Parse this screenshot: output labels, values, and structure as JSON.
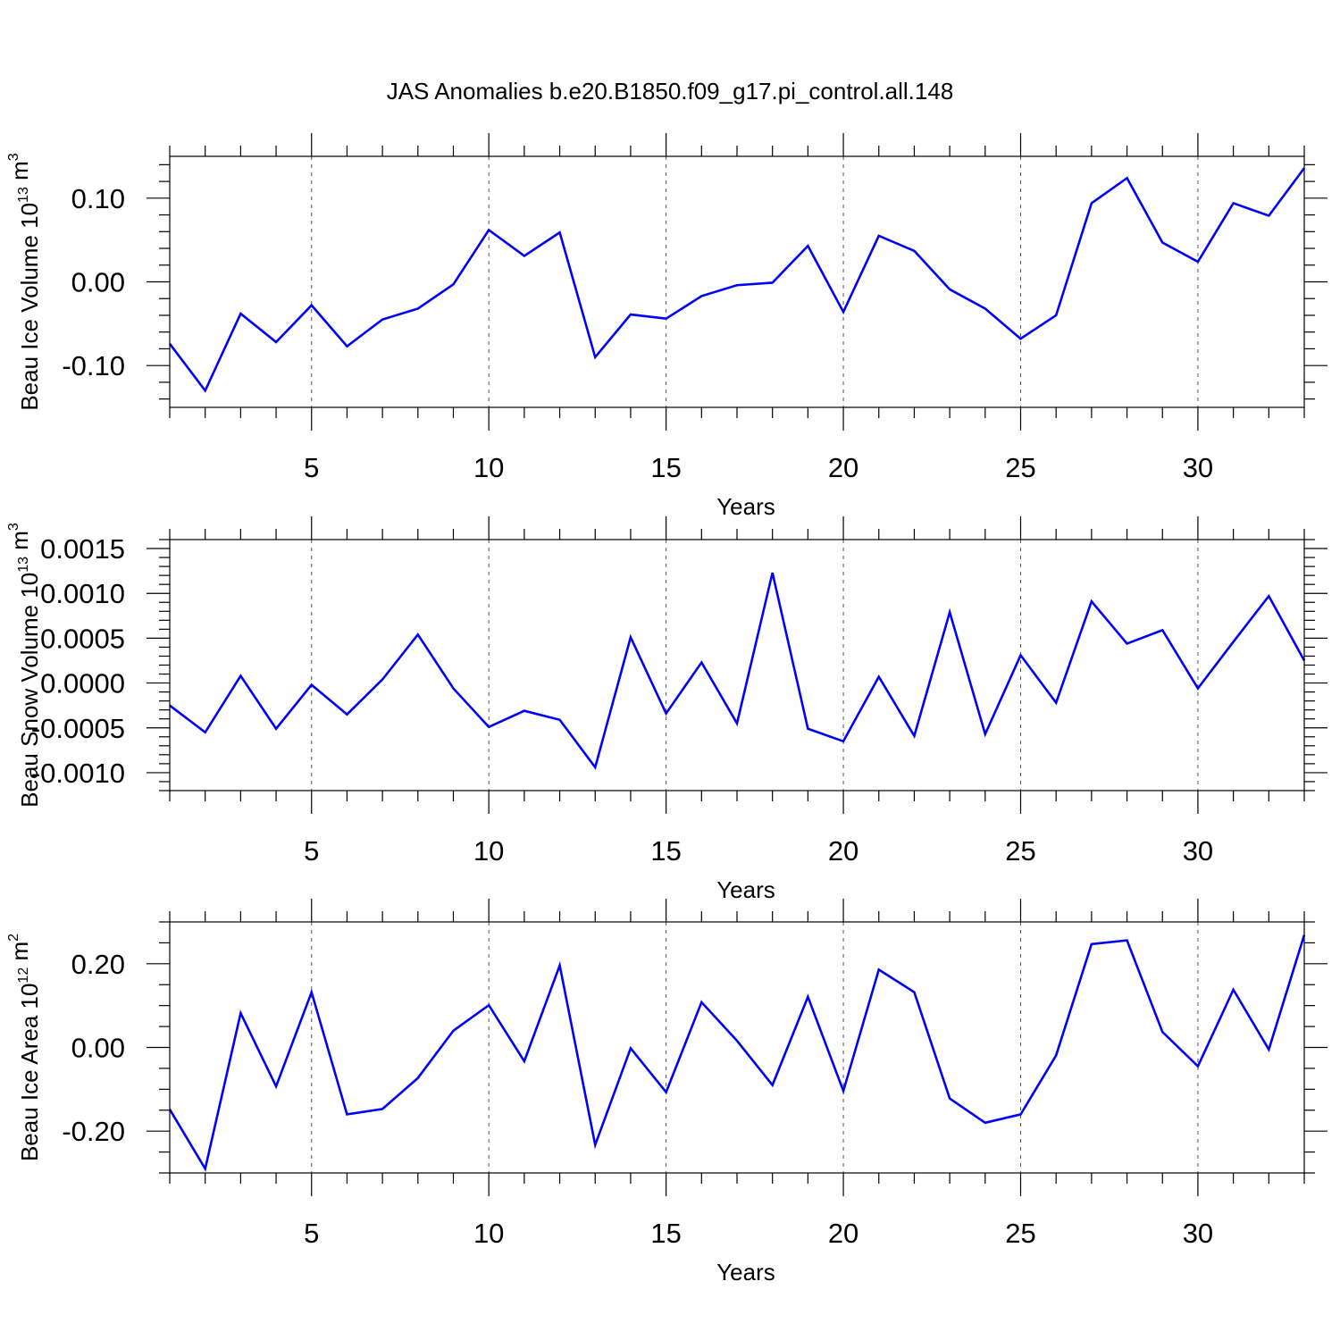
{
  "figure": {
    "title": "JAS Anomalies b.e20.B1850.f09_g17.pi_control.all.148"
  },
  "style": {
    "line_color": "#0000ff",
    "axis_color": "#000000",
    "grid_color": "#555555",
    "background": "#ffffff"
  },
  "chart_data": [
    {
      "type": "line",
      "ylabel_main": "Beau Ice Volume 10",
      "ylabel_exp": "13",
      "ylabel_unit": " m",
      "ylabel_unit_exp": "3",
      "xlabel": "Years",
      "xlim": [
        1,
        33
      ],
      "ylim": [
        -0.15,
        0.15
      ],
      "xticks": [
        5,
        10,
        15,
        20,
        25,
        30
      ],
      "xtick_labels": [
        "5",
        "10",
        "15",
        "20",
        "25",
        "30"
      ],
      "yticks": [
        -0.1,
        0.0,
        0.1
      ],
      "ytick_labels": [
        "-0.10",
        "0.00",
        "0.10"
      ],
      "y_minor_step": 0.02,
      "grid_x": true,
      "series": [
        {
          "x": [
            1,
            2,
            3,
            4,
            5,
            6,
            7,
            8,
            9,
            10,
            11,
            12,
            13,
            14,
            15,
            16,
            17,
            18,
            19,
            20,
            21,
            22,
            23,
            24,
            25,
            26,
            27,
            28,
            29,
            30,
            31,
            32,
            33
          ],
          "values": [
            -0.074,
            -0.13,
            -0.038,
            -0.072,
            -0.028,
            -0.077,
            -0.045,
            -0.032,
            -0.003,
            0.062,
            0.031,
            0.059,
            -0.09,
            -0.039,
            -0.044,
            -0.017,
            -0.004,
            -0.001,
            0.043,
            -0.036,
            0.055,
            0.037,
            -0.009,
            -0.032,
            -0.068,
            -0.04,
            0.094,
            0.124,
            0.047,
            0.024,
            0.094,
            0.079,
            0.136
          ]
        }
      ]
    },
    {
      "type": "line",
      "ylabel_main": "Beau Snow Volume 10",
      "ylabel_exp": "13",
      "ylabel_unit": " m",
      "ylabel_unit_exp": "3",
      "xlabel": "Years",
      "xlim": [
        1,
        33
      ],
      "ylim": [
        -0.0012,
        0.0016
      ],
      "xticks": [
        5,
        10,
        15,
        20,
        25,
        30
      ],
      "xtick_labels": [
        "5",
        "10",
        "15",
        "20",
        "25",
        "30"
      ],
      "yticks": [
        -0.001,
        -0.0005,
        0.0,
        0.0005,
        0.001,
        0.0015
      ],
      "ytick_labels": [
        "-0.0010",
        "-0.0005",
        "0.0000",
        "0.0005",
        "0.0010",
        "0.0015"
      ],
      "y_minor_step": 0.0001,
      "grid_x": true,
      "series": [
        {
          "x": [
            1,
            2,
            3,
            4,
            5,
            6,
            7,
            8,
            9,
            10,
            11,
            12,
            13,
            14,
            15,
            16,
            17,
            18,
            19,
            20,
            21,
            22,
            23,
            24,
            25,
            26,
            27,
            28,
            29,
            30,
            31,
            32,
            33
          ],
          "values": [
            -0.00025,
            -0.00055,
            8e-05,
            -0.00051,
            -2e-05,
            -0.00035,
            4e-05,
            0.00054,
            -6e-05,
            -0.00049,
            -0.00031,
            -0.00041,
            -0.00094,
            0.00051,
            -0.00034,
            0.00023,
            -0.00045,
            0.00123,
            -0.00051,
            -0.00065,
            7e-05,
            -0.00059,
            0.00079,
            -0.00057,
            0.00031,
            -0.00022,
            0.00091,
            0.00044,
            0.00059,
            -6e-05,
            0.00046,
            0.00097,
            0.00025
          ]
        }
      ]
    },
    {
      "type": "line",
      "ylabel_main": "Beau Ice Area 10",
      "ylabel_exp": "12",
      "ylabel_unit": " m",
      "ylabel_unit_exp": "2",
      "xlabel": "Years",
      "xlim": [
        1,
        33
      ],
      "ylim": [
        -0.3,
        0.3
      ],
      "xticks": [
        5,
        10,
        15,
        20,
        25,
        30
      ],
      "xtick_labels": [
        "5",
        "10",
        "15",
        "20",
        "25",
        "30"
      ],
      "yticks": [
        -0.2,
        0.0,
        0.2
      ],
      "ytick_labels": [
        "-0.20",
        "0.00",
        "0.20"
      ],
      "y_minor_step": 0.05,
      "grid_x": true,
      "series": [
        {
          "x": [
            1,
            2,
            3,
            4,
            5,
            6,
            7,
            8,
            9,
            10,
            11,
            12,
            13,
            14,
            15,
            16,
            17,
            18,
            19,
            20,
            21,
            22,
            23,
            24,
            25,
            26,
            27,
            28,
            29,
            30,
            31,
            32,
            33
          ],
          "values": [
            -0.148,
            -0.29,
            0.082,
            -0.093,
            0.132,
            -0.16,
            -0.147,
            -0.073,
            0.04,
            0.101,
            -0.033,
            0.196,
            -0.233,
            -0.002,
            -0.107,
            0.108,
            0.016,
            -0.09,
            0.121,
            -0.104,
            0.186,
            0.132,
            -0.122,
            -0.18,
            -0.16,
            -0.019,
            0.247,
            0.256,
            0.037,
            -0.045,
            0.138,
            -0.005,
            0.269
          ]
        }
      ]
    }
  ]
}
